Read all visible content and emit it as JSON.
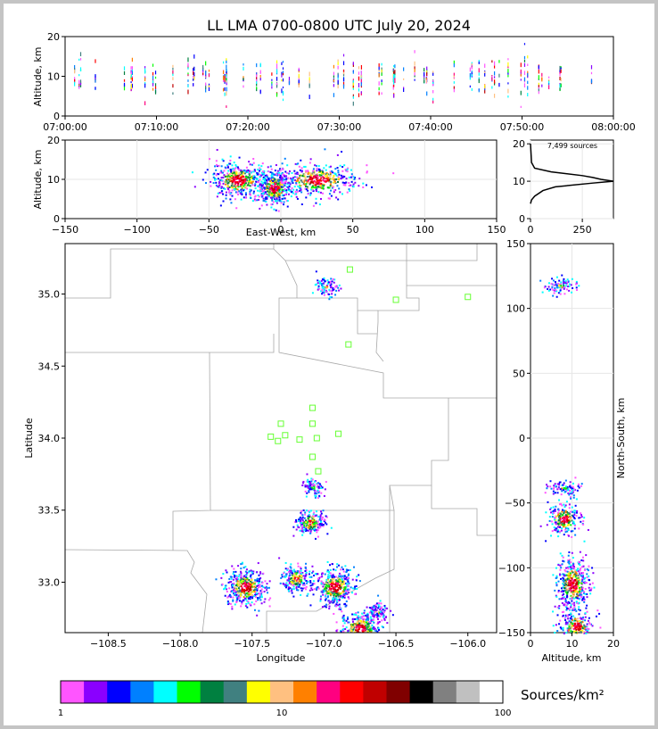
{
  "title": "LL LMA 0700-0800 UTC July 20, 2024",
  "time_panel": {
    "ylabel": "Altitude, km",
    "yticks": [
      "0",
      "10",
      "20"
    ],
    "xticks": [
      "07:00:00",
      "07:10:00",
      "07:20:00",
      "07:30:00",
      "07:40:00",
      "07:50:00",
      "08:00:00"
    ]
  },
  "ew_panel": {
    "ylabel": "Altitude, km",
    "xlabel": "East-West, km",
    "yticks": [
      "0",
      "10",
      "20"
    ],
    "xticks": [
      "−150",
      "−100",
      "−50",
      "0",
      "50",
      "100",
      "150"
    ]
  },
  "hist_panel": {
    "annotation": "7,499 sources",
    "yticks": [
      "0",
      "10",
      "20"
    ],
    "xticks": [
      "0",
      "250"
    ]
  },
  "map_panel": {
    "xlabel": "Longitude",
    "ylabel": "Latitude",
    "xticks": [
      "−108.5",
      "−108.0",
      "−107.5",
      "−107.0",
      "−106.5",
      "−106.0"
    ],
    "yticks": [
      "33.0",
      "33.5",
      "34.0",
      "34.5",
      "35.0"
    ]
  },
  "ns_panel": {
    "xlabel": "Altitude, km",
    "ylabel": "North-South, km",
    "xticks": [
      "0",
      "10",
      "20"
    ],
    "yticks": [
      "−150",
      "−100",
      "−50",
      "0",
      "50",
      "100",
      "150"
    ]
  },
  "colorbar": {
    "label": "Sources/km²",
    "ticks": [
      "1",
      "10",
      "100"
    ],
    "colors": [
      "#ff55ff",
      "#8a00ff",
      "#0000ff",
      "#0080ff",
      "#00ffff",
      "#00ff00",
      "#008040",
      "#408080",
      "#ffff00",
      "#ffc080",
      "#ff8000",
      "#ff0080",
      "#ff0000",
      "#c00000",
      "#800000",
      "#000000",
      "#808080",
      "#c0c0c0",
      "#ffffff"
    ]
  },
  "chart_data": [
    {
      "type": "scatter",
      "title": "LL LMA 0700-0800 UTC July 20, 2024",
      "xlabel": "",
      "ylabel": "Altitude, km",
      "xlim": [
        "07:00:00",
        "08:00:00"
      ],
      "ylim": [
        0,
        20
      ],
      "grid": false
    },
    {
      "type": "heatmap",
      "xlabel": "East-West, km",
      "ylabel": "Altitude, km",
      "xlim": [
        -150,
        150
      ],
      "ylim": [
        0,
        20
      ],
      "grid": true,
      "clusters": [
        {
          "x_center": -30,
          "z_center": 10,
          "x_extent": [
            -50,
            -15
          ]
        },
        {
          "x_center": -5,
          "z_center": 8,
          "x_extent": [
            -15,
            5
          ]
        },
        {
          "x_center": 25,
          "z_center": 10,
          "x_extent": [
            5,
            55
          ]
        }
      ]
    },
    {
      "type": "line",
      "annotation": "7,499 sources",
      "xlim": [
        0,
        400
      ],
      "ylim": [
        0,
        21
      ],
      "points": [
        [
          0,
          20
        ],
        [
          5,
          15
        ],
        [
          20,
          13.5
        ],
        [
          100,
          12.5
        ],
        [
          250,
          11.5
        ],
        [
          300,
          11
        ],
        [
          340,
          10.5
        ],
        [
          400,
          10
        ],
        [
          300,
          9.5
        ],
        [
          120,
          8.5
        ],
        [
          60,
          7.5
        ],
        [
          20,
          6
        ],
        [
          5,
          5
        ],
        [
          0,
          4
        ]
      ]
    },
    {
      "type": "heatmap",
      "xlabel": "Longitude",
      "ylabel": "Latitude",
      "xlim": [
        -108.8,
        -105.8
      ],
      "ylim": [
        32.65,
        35.35
      ],
      "grid": false,
      "stations": [
        {
          "lon": -106.82,
          "lat": 35.17
        },
        {
          "lon": -106.5,
          "lat": 34.96
        },
        {
          "lon": -106.0,
          "lat": 34.98
        },
        {
          "lon": -106.83,
          "lat": 34.65
        },
        {
          "lon": -107.08,
          "lat": 34.21
        },
        {
          "lon": -107.3,
          "lat": 34.1
        },
        {
          "lon": -107.08,
          "lat": 34.1
        },
        {
          "lon": -107.37,
          "lat": 34.01
        },
        {
          "lon": -107.32,
          "lat": 33.98
        },
        {
          "lon": -107.27,
          "lat": 34.02
        },
        {
          "lon": -107.17,
          "lat": 33.99
        },
        {
          "lon": -107.05,
          "lat": 34.0
        },
        {
          "lon": -106.9,
          "lat": 34.03
        },
        {
          "lon": -107.08,
          "lat": 33.87
        },
        {
          "lon": -107.04,
          "lat": 33.77
        }
      ],
      "clusters": [
        {
          "lon": -107.55,
          "lat": 32.97,
          "level": "high"
        },
        {
          "lon": -107.2,
          "lat": 33.03,
          "level": "medium"
        },
        {
          "lon": -106.93,
          "lat": 32.97,
          "level": "high"
        },
        {
          "lon": -107.1,
          "lat": 33.42,
          "level": "medium"
        },
        {
          "lon": -107.08,
          "lat": 33.66,
          "level": "low"
        },
        {
          "lon": -106.75,
          "lat": 32.68,
          "level": "high"
        },
        {
          "lon": -106.63,
          "lat": 32.8,
          "level": "low"
        },
        {
          "lon": -106.99,
          "lat": 35.05,
          "level": "low"
        }
      ]
    },
    {
      "type": "heatmap",
      "xlabel": "Altitude, km",
      "ylabel": "North-South, km",
      "xlim": [
        0,
        20
      ],
      "ylim": [
        -150,
        150
      ],
      "grid": true,
      "clusters": [
        {
          "z_center": 10,
          "y_center": -112,
          "level": "high"
        },
        {
          "z_center": 8,
          "y_center": -62,
          "level": "medium"
        },
        {
          "z_center": 8,
          "y_center": -38,
          "level": "low"
        },
        {
          "z_center": 11,
          "y_center": -145,
          "level": "medium"
        },
        {
          "z_center": 7,
          "y_center": 118,
          "level": "low"
        }
      ]
    }
  ]
}
